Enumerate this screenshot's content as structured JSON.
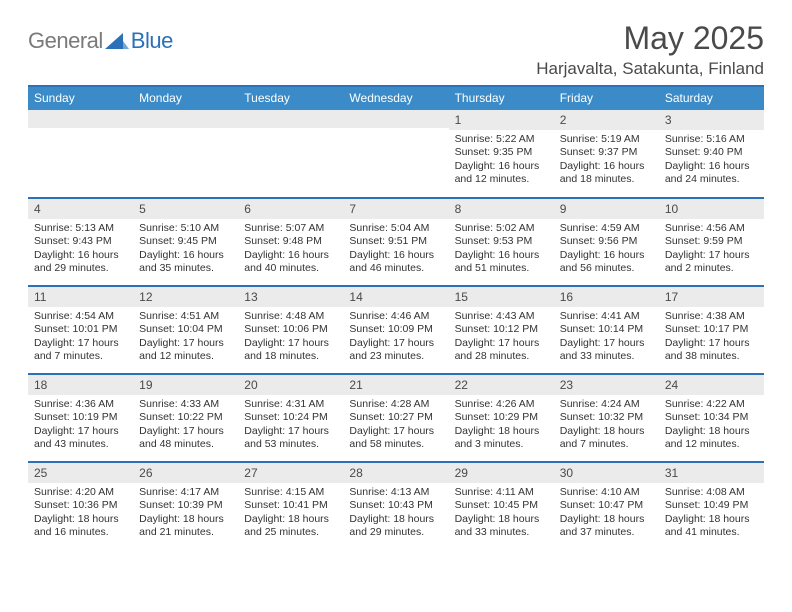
{
  "brand": {
    "text1": "General",
    "text2": "Blue",
    "color_gray": "#7a7a7a",
    "color_blue": "#2b71b8"
  },
  "title": "May 2025",
  "location": "Harjavalta, Satakunta, Finland",
  "colors": {
    "header_bg": "#3b8bc8",
    "rule": "#2b71b8",
    "daynum_bg": "#ebebeb",
    "page_bg": "#ffffff",
    "text": "#333333",
    "title_text": "#4a4a4a"
  },
  "weekdays": [
    "Sunday",
    "Monday",
    "Tuesday",
    "Wednesday",
    "Thursday",
    "Friday",
    "Saturday"
  ],
  "weeks": [
    [
      {
        "num": "",
        "lines": []
      },
      {
        "num": "",
        "lines": []
      },
      {
        "num": "",
        "lines": []
      },
      {
        "num": "",
        "lines": []
      },
      {
        "num": "1",
        "lines": [
          "Sunrise: 5:22 AM",
          "Sunset: 9:35 PM",
          "Daylight: 16 hours and 12 minutes."
        ]
      },
      {
        "num": "2",
        "lines": [
          "Sunrise: 5:19 AM",
          "Sunset: 9:37 PM",
          "Daylight: 16 hours and 18 minutes."
        ]
      },
      {
        "num": "3",
        "lines": [
          "Sunrise: 5:16 AM",
          "Sunset: 9:40 PM",
          "Daylight: 16 hours and 24 minutes."
        ]
      }
    ],
    [
      {
        "num": "4",
        "lines": [
          "Sunrise: 5:13 AM",
          "Sunset: 9:43 PM",
          "Daylight: 16 hours and 29 minutes."
        ]
      },
      {
        "num": "5",
        "lines": [
          "Sunrise: 5:10 AM",
          "Sunset: 9:45 PM",
          "Daylight: 16 hours and 35 minutes."
        ]
      },
      {
        "num": "6",
        "lines": [
          "Sunrise: 5:07 AM",
          "Sunset: 9:48 PM",
          "Daylight: 16 hours and 40 minutes."
        ]
      },
      {
        "num": "7",
        "lines": [
          "Sunrise: 5:04 AM",
          "Sunset: 9:51 PM",
          "Daylight: 16 hours and 46 minutes."
        ]
      },
      {
        "num": "8",
        "lines": [
          "Sunrise: 5:02 AM",
          "Sunset: 9:53 PM",
          "Daylight: 16 hours and 51 minutes."
        ]
      },
      {
        "num": "9",
        "lines": [
          "Sunrise: 4:59 AM",
          "Sunset: 9:56 PM",
          "Daylight: 16 hours and 56 minutes."
        ]
      },
      {
        "num": "10",
        "lines": [
          "Sunrise: 4:56 AM",
          "Sunset: 9:59 PM",
          "Daylight: 17 hours and 2 minutes."
        ]
      }
    ],
    [
      {
        "num": "11",
        "lines": [
          "Sunrise: 4:54 AM",
          "Sunset: 10:01 PM",
          "Daylight: 17 hours and 7 minutes."
        ]
      },
      {
        "num": "12",
        "lines": [
          "Sunrise: 4:51 AM",
          "Sunset: 10:04 PM",
          "Daylight: 17 hours and 12 minutes."
        ]
      },
      {
        "num": "13",
        "lines": [
          "Sunrise: 4:48 AM",
          "Sunset: 10:06 PM",
          "Daylight: 17 hours and 18 minutes."
        ]
      },
      {
        "num": "14",
        "lines": [
          "Sunrise: 4:46 AM",
          "Sunset: 10:09 PM",
          "Daylight: 17 hours and 23 minutes."
        ]
      },
      {
        "num": "15",
        "lines": [
          "Sunrise: 4:43 AM",
          "Sunset: 10:12 PM",
          "Daylight: 17 hours and 28 minutes."
        ]
      },
      {
        "num": "16",
        "lines": [
          "Sunrise: 4:41 AM",
          "Sunset: 10:14 PM",
          "Daylight: 17 hours and 33 minutes."
        ]
      },
      {
        "num": "17",
        "lines": [
          "Sunrise: 4:38 AM",
          "Sunset: 10:17 PM",
          "Daylight: 17 hours and 38 minutes."
        ]
      }
    ],
    [
      {
        "num": "18",
        "lines": [
          "Sunrise: 4:36 AM",
          "Sunset: 10:19 PM",
          "Daylight: 17 hours and 43 minutes."
        ]
      },
      {
        "num": "19",
        "lines": [
          "Sunrise: 4:33 AM",
          "Sunset: 10:22 PM",
          "Daylight: 17 hours and 48 minutes."
        ]
      },
      {
        "num": "20",
        "lines": [
          "Sunrise: 4:31 AM",
          "Sunset: 10:24 PM",
          "Daylight: 17 hours and 53 minutes."
        ]
      },
      {
        "num": "21",
        "lines": [
          "Sunrise: 4:28 AM",
          "Sunset: 10:27 PM",
          "Daylight: 17 hours and 58 minutes."
        ]
      },
      {
        "num": "22",
        "lines": [
          "Sunrise: 4:26 AM",
          "Sunset: 10:29 PM",
          "Daylight: 18 hours and 3 minutes."
        ]
      },
      {
        "num": "23",
        "lines": [
          "Sunrise: 4:24 AM",
          "Sunset: 10:32 PM",
          "Daylight: 18 hours and 7 minutes."
        ]
      },
      {
        "num": "24",
        "lines": [
          "Sunrise: 4:22 AM",
          "Sunset: 10:34 PM",
          "Daylight: 18 hours and 12 minutes."
        ]
      }
    ],
    [
      {
        "num": "25",
        "lines": [
          "Sunrise: 4:20 AM",
          "Sunset: 10:36 PM",
          "Daylight: 18 hours and 16 minutes."
        ]
      },
      {
        "num": "26",
        "lines": [
          "Sunrise: 4:17 AM",
          "Sunset: 10:39 PM",
          "Daylight: 18 hours and 21 minutes."
        ]
      },
      {
        "num": "27",
        "lines": [
          "Sunrise: 4:15 AM",
          "Sunset: 10:41 PM",
          "Daylight: 18 hours and 25 minutes."
        ]
      },
      {
        "num": "28",
        "lines": [
          "Sunrise: 4:13 AM",
          "Sunset: 10:43 PM",
          "Daylight: 18 hours and 29 minutes."
        ]
      },
      {
        "num": "29",
        "lines": [
          "Sunrise: 4:11 AM",
          "Sunset: 10:45 PM",
          "Daylight: 18 hours and 33 minutes."
        ]
      },
      {
        "num": "30",
        "lines": [
          "Sunrise: 4:10 AM",
          "Sunset: 10:47 PM",
          "Daylight: 18 hours and 37 minutes."
        ]
      },
      {
        "num": "31",
        "lines": [
          "Sunrise: 4:08 AM",
          "Sunset: 10:49 PM",
          "Daylight: 18 hours and 41 minutes."
        ]
      }
    ]
  ]
}
